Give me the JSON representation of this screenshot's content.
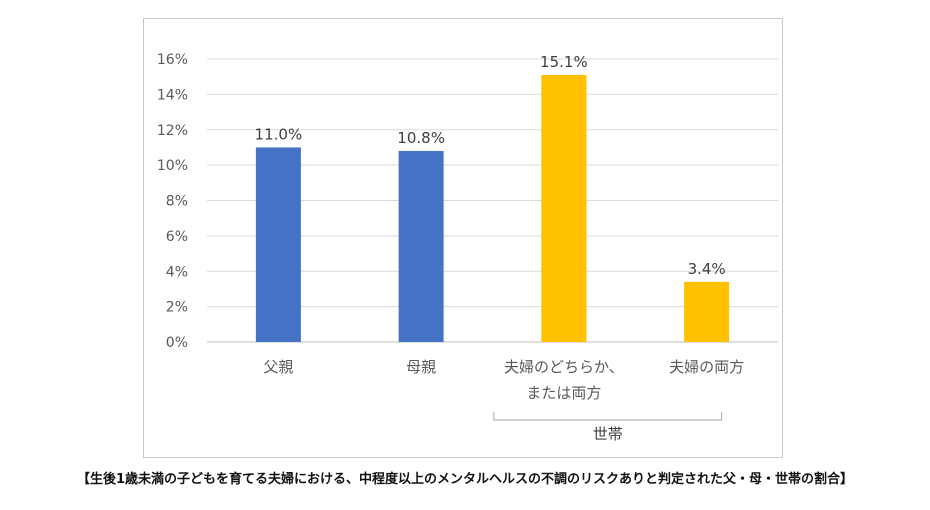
{
  "chart_data": {
    "type": "bar",
    "categories": [
      {
        "lines": [
          "父親"
        ]
      },
      {
        "lines": [
          "母親"
        ]
      },
      {
        "lines": [
          "夫婦のどちらか、",
          "または両方"
        ]
      },
      {
        "lines": [
          "夫婦の両方"
        ]
      }
    ],
    "values": [
      11.0,
      10.8,
      15.1,
      3.4
    ],
    "data_labels": [
      "11.0%",
      "10.8%",
      "15.1%",
      "3.4%"
    ],
    "bar_colors": [
      "#4472C4",
      "#4472C4",
      "#FFC000",
      "#FFC000"
    ],
    "ylim": [
      0,
      16
    ],
    "yticks": [
      "0%",
      "2%",
      "4%",
      "6%",
      "8%",
      "10%",
      "12%",
      "14%",
      "16%"
    ],
    "grid": true,
    "group_bracket": {
      "label": "世帯",
      "span": [
        2,
        3
      ]
    },
    "title": "",
    "xlabel": "",
    "ylabel": ""
  },
  "caption": "【生後1歳未満の子どもを育てる夫婦における、中程度以上のメンタルヘルスの不調のリスクありと判定された父・母・世帯の割合】"
}
